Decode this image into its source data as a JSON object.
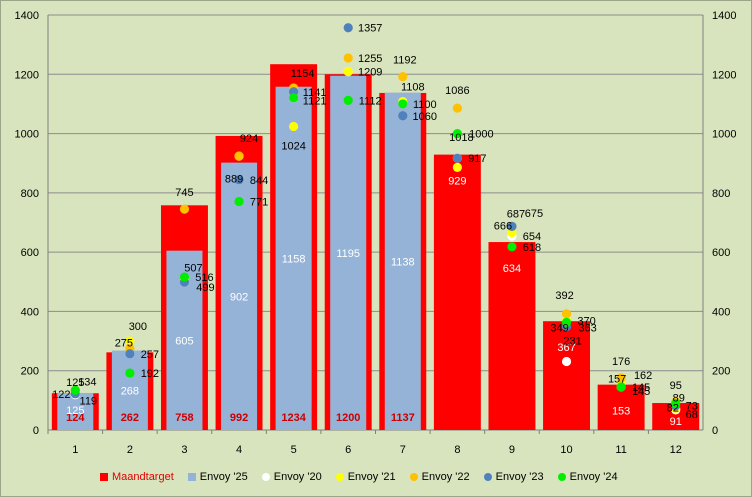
{
  "chart_data": {
    "type": "bar",
    "categories": [
      "1",
      "2",
      "3",
      "4",
      "5",
      "6",
      "7",
      "8",
      "9",
      "10",
      "11",
      "12"
    ],
    "ylim": [
      0,
      1400
    ],
    "yticks": [
      0,
      200,
      400,
      600,
      800,
      1000,
      1200,
      1400
    ],
    "grid": true,
    "legend_position": "bottom",
    "bar_series": [
      {
        "name": "Maandtarget",
        "color": "#ff0000",
        "label_color": "#cc0000",
        "values": [
          124,
          262,
          758,
          992,
          1234,
          1200,
          1137,
          929,
          634,
          367,
          153,
          91
        ]
      },
      {
        "name": "Envoy '25",
        "color": "#95b3d7",
        "label_color": "#ffffff",
        "values": [
          125,
          268,
          605,
          902,
          1158,
          1195,
          1138,
          null,
          null,
          null,
          null,
          null
        ]
      }
    ],
    "point_series": [
      {
        "name": "Envoy '20",
        "color": "#ffffff",
        "values": [
          119,
          257,
          499,
          844,
          1121,
          1209,
          1100,
          917,
          654,
          231,
          145,
          68
        ]
      },
      {
        "name": "Envoy '21",
        "color": "#ffff00",
        "values": [
          122,
          300,
          507,
          924,
          1024,
          1209,
          1108,
          886,
          666,
          370,
          157,
          73
        ]
      },
      {
        "name": "Envoy '22",
        "color": "#ffc000",
        "values": [
          134,
          275,
          745,
          924,
          1154,
          1255,
          1192,
          1086,
          687,
          392,
          176,
          95
        ]
      },
      {
        "name": "Envoy '23",
        "color": "#4f81bd",
        "values": [
          122,
          257,
          499,
          844,
          1141,
          1357,
          1060,
          917,
          687,
          349,
          145,
          82
        ]
      },
      {
        "name": "Envoy '24",
        "color": "#00ee00",
        "values": [
          134,
          192,
          516,
          771,
          1121,
          1112,
          1100,
          1000,
          618,
          363,
          145,
          89
        ]
      }
    ]
  },
  "value_labels": [
    {
      "cat": "1",
      "text": "125",
      "dx": 0,
      "dy": -11
    },
    {
      "cat": "1",
      "text": "122",
      "dx": -14,
      "dy": 0
    },
    {
      "cat": "1",
      "text": "134",
      "dx": 12,
      "dy": -9
    },
    {
      "cat": "1",
      "text": "119",
      "dx": 13,
      "dy": 6
    },
    {
      "cat": "2",
      "text": "300",
      "dx": 8,
      "dy": -15
    },
    {
      "cat": "2",
      "text": "275",
      "dx": -6,
      "dy": -6
    },
    {
      "cat": "2",
      "text": "257",
      "dx": 20,
      "dy": 0
    },
    {
      "cat": "2",
      "text": "192",
      "dx": 20,
      "dy": 0
    },
    {
      "cat": "3",
      "text": "745",
      "dx": 0,
      "dy": -17
    },
    {
      "cat": "3",
      "text": "507",
      "dx": 9,
      "dy": -12
    },
    {
      "cat": "3",
      "text": "516",
      "dx": 20,
      "dy": 0
    },
    {
      "cat": "3",
      "text": "499",
      "dx": 21,
      "dy": 5
    },
    {
      "cat": "4",
      "text": "924",
      "dx": 10,
      "dy": -18
    },
    {
      "cat": "4",
      "text": "889",
      "dx": -5,
      "dy": 12
    },
    {
      "cat": "4",
      "text": "844",
      "dx": 20,
      "dy": 0
    },
    {
      "cat": "4",
      "text": "771",
      "dx": 20,
      "dy": 0
    },
    {
      "cat": "5",
      "text": "1154",
      "dx": 9,
      "dy": -15
    },
    {
      "cat": "5",
      "text": "1141",
      "dx": 21,
      "dy": 0
    },
    {
      "cat": "5",
      "text": "1121",
      "dx": 21,
      "dy": 3
    },
    {
      "cat": "5",
      "text": "1024",
      "dx": 0,
      "dy": 19
    },
    {
      "cat": "6",
      "text": "1357",
      "dx": 22,
      "dy": 0
    },
    {
      "cat": "6",
      "text": "1255",
      "dx": 22,
      "dy": 0
    },
    {
      "cat": "6",
      "text": "1209",
      "dx": 22,
      "dy": 0
    },
    {
      "cat": "6",
      "text": "1112",
      "dx": 22,
      "dy": 0
    },
    {
      "cat": "7",
      "text": "1192",
      "dx": 2,
      "dy": -17
    },
    {
      "cat": "7",
      "text": "1108",
      "dx": 10,
      "dy": -15
    },
    {
      "cat": "7",
      "text": "1100",
      "dx": 22,
      "dy": 0
    },
    {
      "cat": "7",
      "text": "1060",
      "dx": 22,
      "dy": 0
    },
    {
      "cat": "8",
      "text": "1086",
      "dx": 0,
      "dy": -18
    },
    {
      "cat": "8",
      "text": "1018",
      "dx": 4,
      "dy": 9
    },
    {
      "cat": "8",
      "text": "1000",
      "dx": 24,
      "dy": 0
    },
    {
      "cat": "8",
      "text": "917",
      "dx": 20,
      "dy": 0
    },
    {
      "cat": "9",
      "text": "687",
      "dx": 4,
      "dy": -13
    },
    {
      "cat": "9",
      "text": "675",
      "dx": 22,
      "dy": -17
    },
    {
      "cat": "9",
      "text": "666",
      "dx": -9,
      "dy": -7
    },
    {
      "cat": "9",
      "text": "654",
      "dx": 20,
      "dy": 0
    },
    {
      "cat": "9",
      "text": "618",
      "dx": 20,
      "dy": 0
    },
    {
      "cat": "10",
      "text": "392",
      "dx": -2,
      "dy": -19
    },
    {
      "cat": "10",
      "text": "370",
      "dx": 20,
      "dy": 0
    },
    {
      "cat": "10",
      "text": "363",
      "dx": 21,
      "dy": 5
    },
    {
      "cat": "10",
      "text": "349",
      "dx": -7,
      "dy": 1
    },
    {
      "cat": "10",
      "text": "231",
      "dx": 6,
      "dy": -21
    },
    {
      "cat": "11",
      "text": "176",
      "dx": 0,
      "dy": -17
    },
    {
      "cat": "11",
      "text": "162",
      "dx": 22,
      "dy": -7
    },
    {
      "cat": "11",
      "text": "157",
      "dx": -4,
      "dy": -5
    },
    {
      "cat": "11",
      "text": "145",
      "dx": 20,
      "dy": 0
    },
    {
      "cat": "11",
      "text": "145",
      "dx": 20,
      "dy": 4
    },
    {
      "cat": "12",
      "text": "95",
      "dx": 0,
      "dy": -17
    },
    {
      "cat": "12",
      "text": "89",
      "dx": 3,
      "dy": -6
    },
    {
      "cat": "12",
      "text": "82",
      "dx": -3,
      "dy": 2
    },
    {
      "cat": "12",
      "text": "73",
      "dx": 16,
      "dy": -3
    },
    {
      "cat": "12",
      "text": "68",
      "dx": 16,
      "dy": 4
    }
  ]
}
